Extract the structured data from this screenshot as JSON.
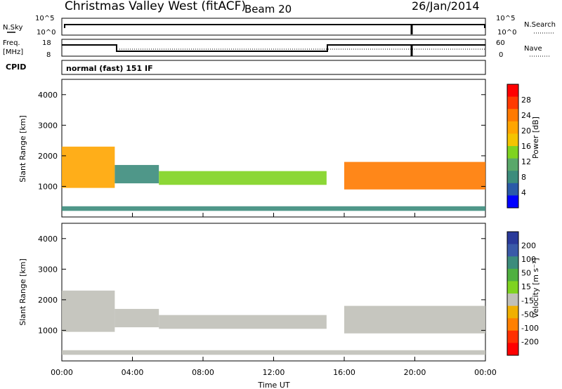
{
  "header": {
    "station": "Christmas Valley West (fitACF)",
    "beam": "Beam 20",
    "date": "26/Jan/2014"
  },
  "noise_panel": {
    "left_label": "N.Sky",
    "left_ticks": [
      "10^5",
      "10^0"
    ],
    "right_label": "N.Search",
    "right_ticks": [
      "10^5",
      "10^0"
    ]
  },
  "freq_panel": {
    "left_label": "Freq.",
    "left_unit": "[MHz]",
    "left_ticks": [
      "18",
      "8"
    ],
    "right_label": "Nave",
    "right_ticks": [
      "60",
      "0"
    ]
  },
  "cpid": {
    "label": "CPID",
    "mode": "normal (fast) 151 IF"
  },
  "panels": [
    {
      "ylabel": "Slant Range [km]"
    },
    {
      "ylabel": "Slant Range [km]"
    }
  ],
  "colorbars": [
    {
      "label": "Power [dB]",
      "ticks": [
        "28",
        "24",
        "20",
        "16",
        "12",
        "8",
        "4"
      ],
      "colors": [
        "#ff0000",
        "#ff3a00",
        "#ff7a00",
        "#ffa500",
        "#f4c400",
        "#7fd320",
        "#5aa86a",
        "#3c8c7c",
        "#2a5aa8",
        "#0000ff"
      ]
    },
    {
      "label": "Velocity [m s⁻¹]",
      "ticks": [
        "200",
        "100",
        "50",
        "15",
        "-15",
        "-50",
        "-100",
        "-200"
      ],
      "colors": [
        "#2a3a9a",
        "#3a5aa8",
        "#3c8c7c",
        "#4fb040",
        "#7fd320",
        "#c0c0b8",
        "#f0b000",
        "#ff8000",
        "#ff3000",
        "#ff0000"
      ]
    }
  ],
  "chart_data": {
    "type": "heatmap",
    "xlabel": "Time UT",
    "x_ticks": [
      "00:00",
      "04:00",
      "08:00",
      "12:00",
      "16:00",
      "20:00",
      "00:00"
    ],
    "x_range_hours": [
      0,
      24
    ],
    "y_ticks": [
      1000,
      2000,
      3000,
      4000
    ],
    "y_range_km": [
      0,
      4500
    ],
    "panels": [
      {
        "quantity": "Power",
        "unit": "dB",
        "range": [
          0,
          30
        ]
      },
      {
        "quantity": "Velocity",
        "unit": "m s-1",
        "range": [
          -250,
          250
        ]
      }
    ],
    "echo_regions": [
      {
        "t_start": 0.0,
        "t_end": 3.0,
        "range_low": 950,
        "range_high": 2300,
        "power_mean": 20,
        "velocity": -5
      },
      {
        "t_start": 3.0,
        "t_end": 5.5,
        "range_low": 1100,
        "range_high": 1700,
        "power_mean": 8,
        "velocity": -20
      },
      {
        "t_start": 5.5,
        "t_end": 15.0,
        "range_low": 1050,
        "range_high": 1500,
        "power_mean": 14,
        "velocity": -40
      },
      {
        "t_start": 16.0,
        "t_end": 24.0,
        "range_low": 900,
        "range_high": 1800,
        "power_mean": 22,
        "velocity": -5
      },
      {
        "t_start": 0.0,
        "t_end": 24.0,
        "range_low": 200,
        "range_high": 350,
        "power_mean": 6,
        "velocity": -30
      }
    ]
  }
}
